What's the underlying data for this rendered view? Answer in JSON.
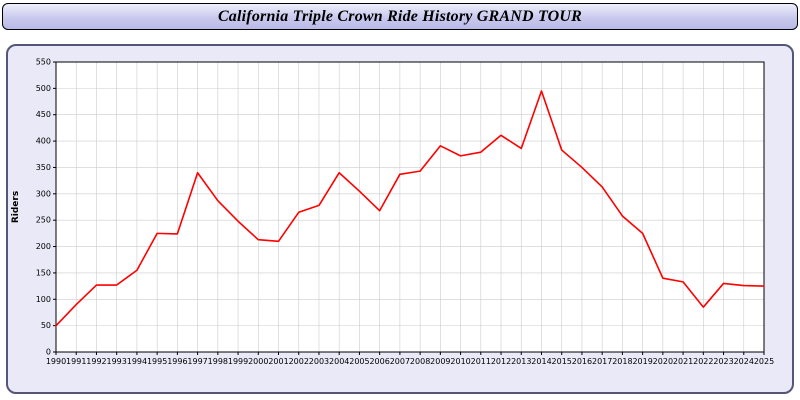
{
  "header": {
    "title": "California Triple Crown Ride History GRAND TOUR"
  },
  "chart_data": {
    "type": "line",
    "title": "California Triple Crown Ride History GRAND TOUR",
    "x": [
      "1990",
      "1991",
      "1992",
      "1993",
      "1994",
      "1995",
      "1996",
      "1997",
      "1998",
      "1999",
      "2000",
      "2001",
      "2002",
      "2003",
      "2004",
      "2005",
      "2006",
      "2007",
      "2008",
      "2009",
      "2010",
      "2011",
      "2012",
      "2013",
      "2014",
      "2015",
      "2016",
      "2017",
      "2018",
      "2019",
      "2020",
      "2021",
      "2022",
      "2023",
      "2024",
      "2025"
    ],
    "series": [
      {
        "name": "Riders",
        "values": [
          50,
          90,
          127,
          127,
          155,
          225,
          224,
          340,
          287,
          248,
          213,
          210,
          265,
          278,
          340,
          305,
          268,
          337,
          343,
          391,
          372,
          379,
          411,
          386,
          495,
          383,
          350,
          313,
          258,
          225,
          140,
          133,
          85,
          130,
          126,
          125
        ]
      }
    ],
    "xlabel": "",
    "ylabel": "Riders",
    "ylim": [
      0,
      550
    ],
    "ytick_step": 50,
    "grid": true,
    "legend": "none",
    "line_color": "#ff0000",
    "plot_bg": "#ffffff",
    "panel_bg": "#e9e9f7",
    "grid_color": "#cccccc",
    "axis_color": "#000000"
  }
}
